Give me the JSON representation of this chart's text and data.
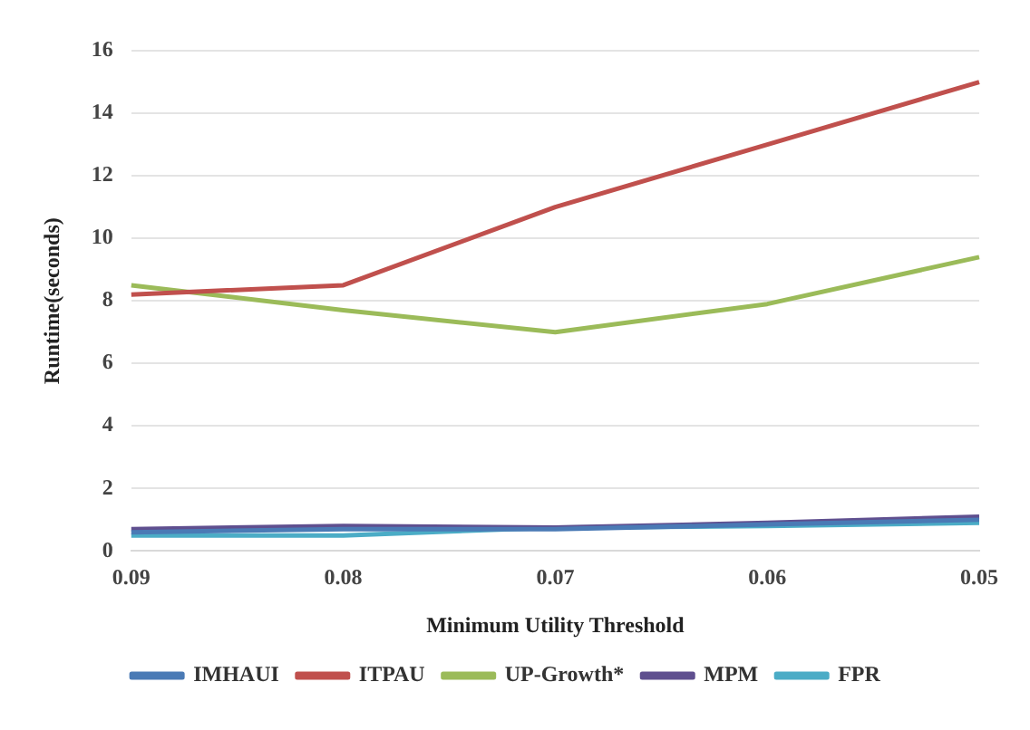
{
  "chart_data": {
    "type": "line",
    "xlabel": "Minimum Utility Threshold",
    "ylabel": "Runtime(seconds)",
    "categories": [
      "0.09",
      "0.08",
      "0.07",
      "0.06",
      "0.05"
    ],
    "series": [
      {
        "name": "IMHAUI",
        "color": "#4a7ab5",
        "values": [
          0.6,
          0.7,
          0.7,
          0.85,
          1.0
        ]
      },
      {
        "name": "ITPAU",
        "color": "#c0504d",
        "values": [
          8.2,
          8.5,
          11,
          13,
          15
        ]
      },
      {
        "name": "UP-Growth*",
        "color": "#9bbb59",
        "values": [
          8.5,
          7.7,
          7.0,
          7.9,
          9.4
        ]
      },
      {
        "name": "MPM",
        "color": "#5f4f8f",
        "values": [
          0.7,
          0.8,
          0.75,
          0.9,
          1.1
        ]
      },
      {
        "name": "FPR",
        "color": "#4bacc6",
        "values": [
          0.5,
          0.5,
          0.75,
          0.8,
          0.9
        ]
      }
    ],
    "ylim": [
      0,
      16
    ],
    "yticks": [
      0,
      2,
      4,
      6,
      8,
      10,
      12,
      14,
      16
    ],
    "grid": "y",
    "legend": "bottom",
    "marker": "none",
    "line_style": "solid"
  }
}
